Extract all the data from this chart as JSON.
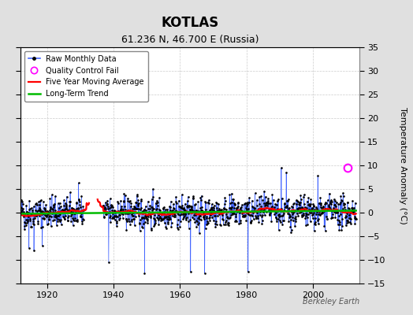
{
  "title": "KOTLAS",
  "subtitle": "61.236 N, 46.700 E (Russia)",
  "right_ylabel": "Temperature Anomaly (°C)",
  "watermark": "Berkeley Earth",
  "xlim": [
    1912,
    2014
  ],
  "ylim": [
    -15,
    35
  ],
  "yticks": [
    -15,
    -10,
    -5,
    0,
    5,
    10,
    15,
    20,
    25,
    30,
    35
  ],
  "xticks": [
    1920,
    1940,
    1960,
    1980,
    2000
  ],
  "bg_color": "#e0e0e0",
  "plot_bg_color": "#ffffff",
  "raw_color": "#4466ff",
  "raw_marker_color": "#000000",
  "ma_color": "#ff0000",
  "trend_color": "#00bb00",
  "qc_color": "#ff00ff",
  "seed": 42,
  "year_start": 1912.0,
  "year_end": 2013.0,
  "qc_fail_year": 2010.5,
  "qc_fail_val": 9.5
}
